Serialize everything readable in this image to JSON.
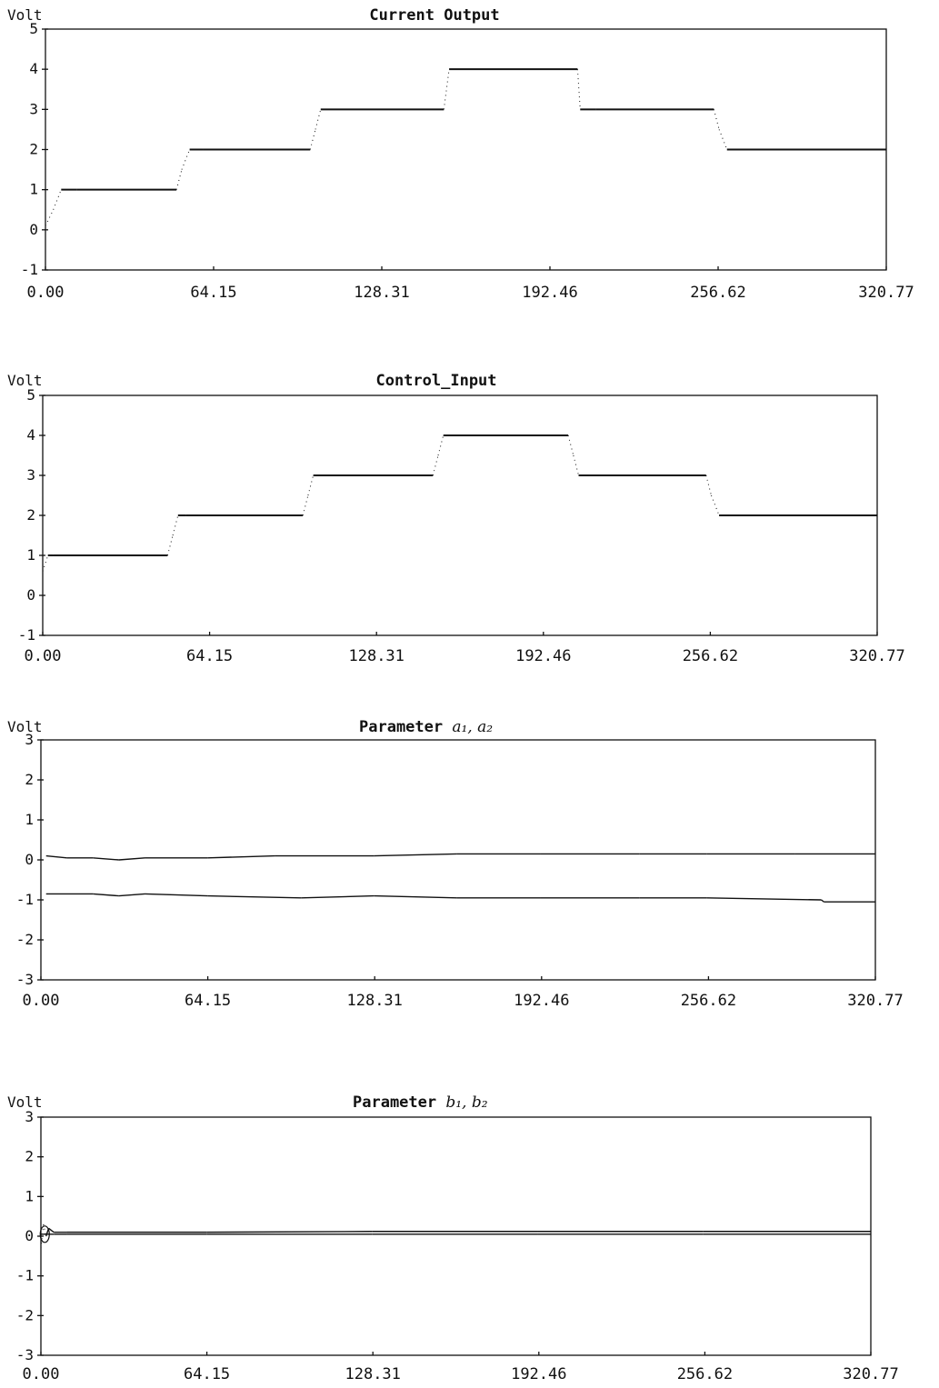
{
  "chart_data": [
    {
      "type": "line",
      "title": "Current Output",
      "ylabel": "Volt",
      "xlabel": "",
      "xlim": [
        0,
        320.77
      ],
      "ylim": [
        -1,
        5
      ],
      "xticks": [
        "0.00",
        "64.15",
        "128.31",
        "192.46",
        "256.62",
        "320.77"
      ],
      "yticks": [
        "5",
        "4",
        "3",
        "2",
        "1",
        "0",
        "-1"
      ],
      "grid": false,
      "series": [
        {
          "x": [
            0,
            3,
            6,
            12,
            50,
            52,
            55,
            60,
            101,
            103,
            105,
            152,
            154,
            203,
            204,
            210,
            255,
            257,
            260,
            320.77
          ],
          "y": [
            0.1,
            0.5,
            1.0,
            1.0,
            1.0,
            1.5,
            2.0,
            2.0,
            2.0,
            2.5,
            3.0,
            3.0,
            4.0,
            4.0,
            3.0,
            3.0,
            3.0,
            2.5,
            2.0,
            2.0
          ]
        }
      ]
    },
    {
      "type": "line",
      "title": "Control_Input",
      "ylabel": "Volt",
      "xlabel": "",
      "xlim": [
        0,
        320.77
      ],
      "ylim": [
        -1,
        5
      ],
      "xticks": [
        "0.00",
        "64.15",
        "128.31",
        "192.46",
        "256.62",
        "320.77"
      ],
      "yticks": [
        "5",
        "4",
        "3",
        "2",
        "1",
        "0",
        "-1"
      ],
      "grid": false,
      "series": [
        {
          "x": [
            0,
            2,
            4,
            48,
            50,
            52,
            55,
            100,
            102,
            104,
            150,
            152,
            154,
            202,
            204,
            206,
            255,
            257,
            260,
            320.77
          ],
          "y": [
            0.6,
            1.0,
            1.0,
            1.0,
            1.5,
            2.0,
            2.0,
            2.0,
            2.5,
            3.0,
            3.0,
            3.5,
            4.0,
            4.0,
            3.5,
            3.0,
            3.0,
            2.5,
            2.0,
            2.0
          ]
        }
      ]
    },
    {
      "type": "line",
      "title": "Parameter ",
      "title_symbols": "a₁, a₂",
      "ylabel": "Volt",
      "xlabel": "",
      "xlim": [
        0,
        320.77
      ],
      "ylim": [
        -3,
        3
      ],
      "xticks": [
        "0.00",
        "64.15",
        "128.31",
        "192.46",
        "256.62",
        "320.77"
      ],
      "yticks": [
        "3",
        "2",
        "1",
        "0",
        "-1",
        "-2",
        "-3"
      ],
      "grid": false,
      "series": [
        {
          "x": [
            2,
            10,
            20,
            30,
            40,
            64,
            90,
            128,
            160,
            192,
            230,
            256,
            290,
            320.77
          ],
          "y": [
            0.1,
            0.05,
            0.05,
            0.0,
            0.05,
            0.05,
            0.1,
            0.1,
            0.15,
            0.15,
            0.15,
            0.15,
            0.15,
            0.15
          ]
        },
        {
          "x": [
            2,
            20,
            30,
            40,
            64,
            100,
            128,
            160,
            192,
            230,
            256,
            300,
            301,
            320.77
          ],
          "y": [
            -0.85,
            -0.85,
            -0.9,
            -0.85,
            -0.9,
            -0.95,
            -0.9,
            -0.95,
            -0.95,
            -0.95,
            -0.95,
            -1.0,
            -1.05,
            -1.05
          ]
        }
      ]
    },
    {
      "type": "line",
      "title": "Parameter ",
      "title_symbols": "b₁, b₂",
      "ylabel": "Volt",
      "xlabel": "",
      "xlim": [
        0,
        320.77
      ],
      "ylim": [
        -3,
        3
      ],
      "xticks": [
        "0.00",
        "64.15",
        "128.31",
        "192.46",
        "256.62",
        "320.77"
      ],
      "yticks": [
        "3",
        "2",
        "1",
        "0",
        "-1",
        "-2",
        "-3"
      ],
      "grid": false,
      "series": [
        {
          "x": [
            0,
            1,
            2,
            3,
            5,
            10,
            64,
            128,
            192,
            256,
            320.77
          ],
          "y": [
            -0.3,
            0.3,
            0.0,
            0.2,
            0.1,
            0.1,
            0.1,
            0.12,
            0.12,
            0.12,
            0.12
          ]
        },
        {
          "x": [
            0,
            5,
            10,
            64,
            128,
            192,
            256,
            320.77
          ],
          "y": [
            0.05,
            0.05,
            0.05,
            0.05,
            0.05,
            0.05,
            0.05,
            0.05
          ]
        }
      ]
    }
  ]
}
